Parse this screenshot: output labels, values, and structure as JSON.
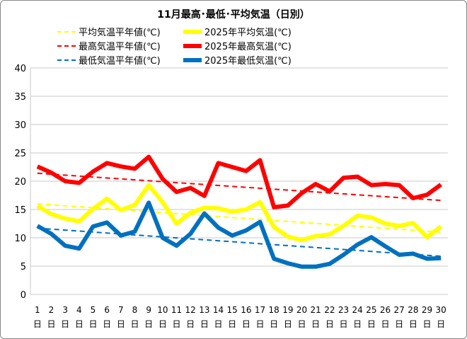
{
  "chart_data": {
    "type": "line",
    "title": "11月最高･最低･平均気温（日別）",
    "ylim": [
      0,
      40
    ],
    "yticks": [
      0,
      5,
      10,
      15,
      20,
      25,
      30,
      35,
      40
    ],
    "grid": true,
    "legend_position": "top",
    "x": [
      1,
      2,
      3,
      4,
      5,
      6,
      7,
      8,
      9,
      10,
      11,
      12,
      13,
      14,
      15,
      16,
      17,
      18,
      19,
      20,
      21,
      22,
      23,
      24,
      25,
      26,
      27,
      28,
      29,
      30
    ],
    "x_suffix": "日",
    "series": [
      {
        "name": "平均気温平年値(℃)",
        "color": "#ffff00",
        "style": "dashed",
        "values": [
          16.0,
          15.83,
          15.66,
          15.48,
          15.31,
          15.14,
          14.97,
          14.79,
          14.62,
          14.45,
          14.28,
          14.1,
          13.93,
          13.76,
          13.59,
          13.41,
          13.24,
          13.07,
          12.9,
          12.72,
          12.55,
          12.38,
          12.21,
          12.03,
          11.86,
          11.69,
          11.52,
          11.34,
          11.17,
          11.0
        ]
      },
      {
        "name": "2025年平均気温(℃)",
        "color": "#ffff00",
        "style": "solid",
        "values": [
          15.6,
          14.2,
          13.4,
          12.9,
          15.1,
          16.9,
          14.9,
          15.8,
          19.3,
          16.3,
          12.5,
          14.4,
          15.3,
          15.2,
          14.6,
          15.0,
          16.3,
          11.9,
          10.2,
          9.6,
          10.3,
          10.6,
          12.1,
          13.9,
          13.6,
          12.5,
          12.1,
          12.6,
          10.1,
          12.0
        ]
      },
      {
        "name": "最高気温平年値(℃)",
        "color": "#ff0000",
        "style": "dashed",
        "values": [
          21.4,
          21.23,
          21.07,
          20.9,
          20.74,
          20.57,
          20.41,
          20.24,
          20.08,
          19.91,
          19.74,
          19.58,
          19.41,
          19.25,
          19.08,
          18.92,
          18.75,
          18.59,
          18.42,
          18.26,
          18.09,
          17.92,
          17.76,
          17.59,
          17.43,
          17.26,
          17.1,
          16.93,
          16.77,
          16.6
        ]
      },
      {
        "name": "2025年最高気温(℃)",
        "color": "#ff0000",
        "style": "solid",
        "values": [
          22.6,
          21.5,
          20.0,
          19.7,
          21.7,
          23.2,
          22.6,
          22.2,
          24.3,
          20.4,
          18.1,
          18.8,
          17.4,
          23.2,
          22.5,
          21.8,
          23.7,
          15.4,
          15.7,
          17.9,
          19.5,
          18.2,
          20.6,
          20.8,
          19.3,
          19.5,
          19.3,
          17.0,
          17.6,
          19.4
        ]
      },
      {
        "name": "最低気温平年値(℃)",
        "color": "#0070c0",
        "style": "dashed",
        "values": [
          11.7,
          11.53,
          11.36,
          11.19,
          11.02,
          10.84,
          10.67,
          10.5,
          10.33,
          10.16,
          9.99,
          9.82,
          9.65,
          9.48,
          9.31,
          9.13,
          8.96,
          8.79,
          8.62,
          8.45,
          8.28,
          8.11,
          7.94,
          7.77,
          7.6,
          7.42,
          7.25,
          7.08,
          6.91,
          6.74
        ]
      },
      {
        "name": "2025年最低気温(℃)",
        "color": "#0070c0",
        "style": "solid",
        "values": [
          12.1,
          10.7,
          8.6,
          8.1,
          12.0,
          12.7,
          10.4,
          11.1,
          16.2,
          10.0,
          8.6,
          10.7,
          14.3,
          11.8,
          10.4,
          11.3,
          12.8,
          6.3,
          5.5,
          4.9,
          4.9,
          5.4,
          7.0,
          8.8,
          10.1,
          8.5,
          7.0,
          7.2,
          6.3,
          6.4
        ]
      }
    ]
  }
}
